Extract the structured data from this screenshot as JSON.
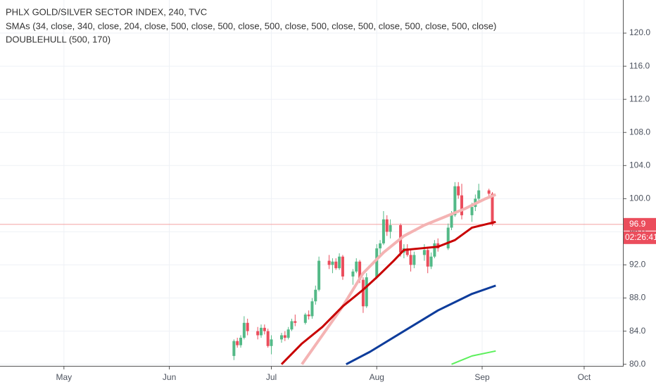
{
  "chart_data": {
    "type": "candlestick",
    "legend_lines": [
      "PHLX GOLD/SILVER SECTOR INDEX, 240, TVC",
      "SMAs (34, close, 340, close, 204, close, 500, close, 500, close, 500, close, 500, close, 500, close, 500, close, 500, close)",
      "DOUBLEHULL (500, 170)"
    ],
    "xlim": [
      -18.8,
      164.4
    ],
    "xticks": [
      {
        "value": 0,
        "label": "May"
      },
      {
        "value": 31,
        "label": "Jun"
      },
      {
        "value": 61,
        "label": "Jul"
      },
      {
        "value": 92,
        "label": "Aug"
      },
      {
        "value": 123,
        "label": "Sep"
      },
      {
        "value": 153,
        "label": "Oct"
      }
    ],
    "ylim": [
      79.8,
      124
    ],
    "yticks": [
      {
        "value": 80,
        "label": "80.0"
      },
      {
        "value": 84,
        "label": "84.0"
      },
      {
        "value": 88,
        "label": "88.0"
      },
      {
        "value": 92,
        "label": "92.0"
      },
      {
        "value": 96,
        "label": "96.0"
      },
      {
        "value": 100,
        "label": "100.0"
      },
      {
        "value": 104,
        "label": "104.0"
      },
      {
        "value": 108,
        "label": "108.0"
      },
      {
        "value": 112,
        "label": "112.0"
      },
      {
        "value": 116,
        "label": "116.0"
      },
      {
        "value": 120,
        "label": "120.0"
      }
    ],
    "grid": true,
    "up_color": "#53b987",
    "down_color": "#eb4d5c",
    "candles": {
      "x": [
        50,
        51,
        52,
        53,
        54,
        57,
        58,
        59,
        60,
        61,
        64,
        65,
        66,
        67,
        68,
        71,
        72,
        73,
        74,
        75,
        78,
        79,
        80,
        81,
        82,
        85,
        86,
        87,
        88,
        89,
        92,
        93,
        94,
        95,
        96,
        99,
        100,
        101,
        102,
        103,
        106,
        107,
        108,
        109,
        110,
        113,
        114,
        115,
        116,
        117,
        120,
        121,
        122,
        125,
        126
      ],
      "open": [
        81,
        82.8,
        82.3,
        83.2,
        85,
        84,
        83.5,
        84.4,
        84,
        82.2,
        83,
        83.5,
        83.2,
        84.2,
        85.2,
        85,
        86,
        85.8,
        87.6,
        89,
        92.5,
        92,
        92.4,
        91.6,
        93,
        90.6,
        91.2,
        92.4,
        90.2,
        87,
        90.5,
        94,
        94.6,
        97.5,
        96,
        96.8,
        93.5,
        94,
        93.2,
        92,
        93.2,
        93.8,
        91.8,
        93,
        94.6,
        94,
        96.5,
        98,
        101.5,
        100.4,
        98,
        99,
        100,
        101,
        100.6
      ],
      "high": [
        83,
        83.2,
        83.5,
        85.8,
        85.5,
        84.5,
        84.8,
        84.8,
        84.3,
        83.5,
        83.8,
        84,
        84.5,
        85.5,
        86,
        86.2,
        86.5,
        88,
        89.5,
        93,
        93.2,
        92.8,
        92.8,
        93.4,
        93.2,
        91.5,
        92.8,
        92.6,
        90.5,
        91,
        94.5,
        95,
        98.5,
        98,
        97.5,
        97,
        94.5,
        94.5,
        93.8,
        93.6,
        94.5,
        94.2,
        93.5,
        95,
        95.2,
        97,
        98.5,
        102,
        102,
        101.8,
        99.5,
        100.5,
        101.8,
        101.2,
        100.8
      ],
      "low": [
        80.5,
        82,
        82,
        83,
        83.5,
        83,
        83.2,
        83.6,
        82,
        81.2,
        82.6,
        82.8,
        83,
        84,
        84.6,
        84.8,
        85.4,
        85.5,
        87.2,
        88.8,
        91.5,
        91,
        91.4,
        91.4,
        90.2,
        89.6,
        91,
        89.8,
        86.2,
        86.8,
        90.3,
        93,
        94.4,
        95.5,
        95.2,
        93,
        92.8,
        93,
        91.2,
        91.6,
        92.5,
        91,
        91.5,
        92.8,
        93.6,
        93.8,
        96.2,
        97.8,
        100,
        97.5,
        97.2,
        98.5,
        99.5,
        100,
        96.7
      ],
      "close": [
        82.8,
        82.3,
        83.2,
        85,
        84,
        83.5,
        84.4,
        84,
        82.2,
        83,
        83.5,
        83.2,
        84.2,
        85.2,
        85,
        86,
        85.8,
        87.6,
        89,
        92.5,
        92,
        92.4,
        91.6,
        93,
        90.6,
        91.2,
        92.4,
        90.2,
        87,
        90.5,
        94,
        94.6,
        97.5,
        96,
        96.8,
        93.5,
        94,
        93.2,
        92,
        93.2,
        93.8,
        91.8,
        93,
        94.6,
        94,
        96.5,
        98,
        101.5,
        100.4,
        98,
        99,
        100,
        101,
        100.6,
        96.9
      ]
    },
    "series": [
      {
        "color": "#f4b3b3",
        "width": 4,
        "x": [
          70,
          76,
          82,
          88,
          94,
          100,
          106,
          112,
          118,
          124,
          127
        ],
        "values": [
          80,
          83.5,
          87,
          91,
          93.5,
          95.5,
          96.8,
          97.8,
          98.8,
          100,
          100.5
        ]
      },
      {
        "color": "#c80000",
        "width": 3,
        "x": [
          64,
          70,
          76,
          82,
          88,
          92,
          97,
          100,
          105,
          110,
          115,
          120,
          125,
          127
        ],
        "values": [
          80,
          82.5,
          84.5,
          87,
          89,
          90.5,
          92.5,
          93.8,
          94,
          94.2,
          95,
          96.5,
          97,
          97.2
        ]
      },
      {
        "color": "#0d3c9b",
        "width": 3,
        "x": [
          83,
          90,
          100,
          110,
          120,
          127
        ],
        "values": [
          80,
          81.5,
          84,
          86.5,
          88.5,
          89.5
        ]
      },
      {
        "color": "#5cf05c",
        "width": 2,
        "x": [
          114,
          120,
          127
        ],
        "values": [
          80,
          81,
          81.6
        ]
      }
    ],
    "last_price": {
      "value": 96.9,
      "label": "96.9"
    },
    "countdown": "02:26:41"
  }
}
